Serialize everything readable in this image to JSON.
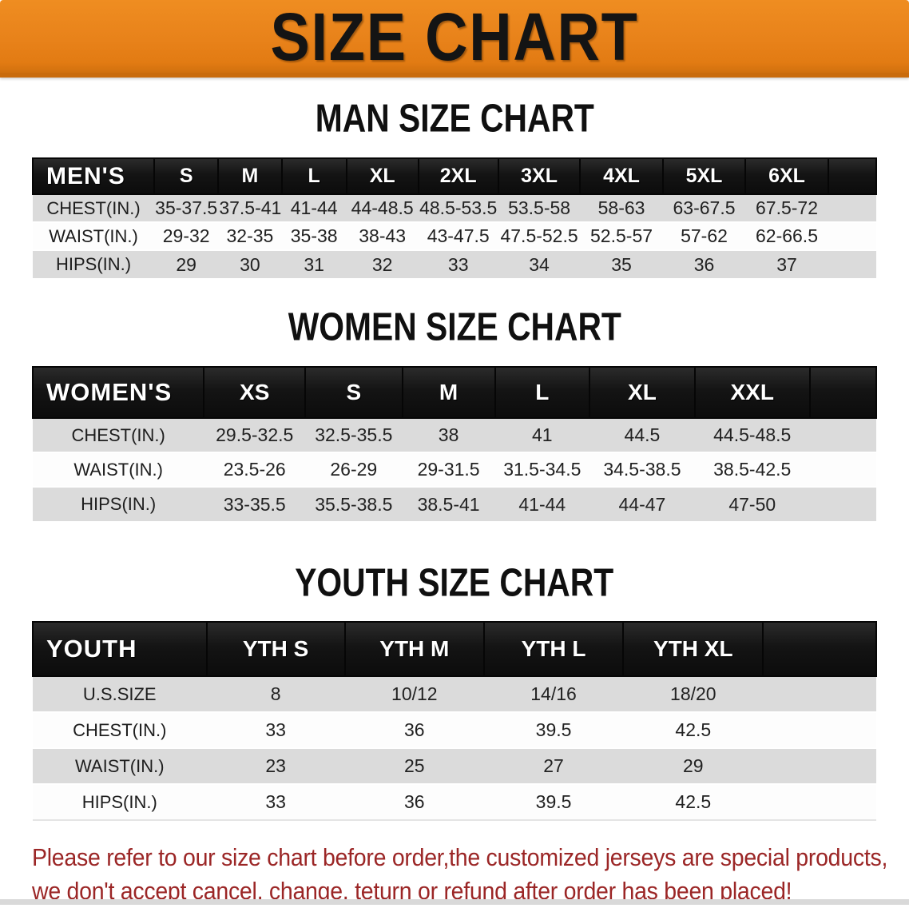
{
  "banner": {
    "title": "SIZE CHART",
    "bg_color": "#E8821A",
    "text_color": "#141414"
  },
  "sections": [
    {
      "id": "men",
      "heading": "MAN SIZE CHART",
      "header_label": "MEN'S",
      "columns": [
        "S",
        "M",
        "L",
        "XL",
        "2XL",
        "3XL",
        "4XL",
        "5XL",
        "6XL"
      ],
      "rows": [
        {
          "label": "CHEST(IN.)",
          "values": [
            "35-37.5",
            "37.5-41",
            "41-44",
            "44-48.5",
            "48.5-53.5",
            "53.5-58",
            "58-63",
            "63-67.5",
            "67.5-72"
          ]
        },
        {
          "label": "WAIST(IN.)",
          "values": [
            "29-32",
            "32-35",
            "35-38",
            "38-43",
            "43-47.5",
            "47.5-52.5",
            "52.5-57",
            "57-62",
            "62-66.5"
          ]
        },
        {
          "label": "HIPS(IN.)",
          "values": [
            "29",
            "30",
            "31",
            "32",
            "33",
            "34",
            "35",
            "36",
            "37"
          ]
        }
      ]
    },
    {
      "id": "women",
      "heading": "WOMEN SIZE CHART",
      "header_label": "WOMEN'S",
      "columns": [
        "XS",
        "S",
        "M",
        "L",
        "XL",
        "XXL"
      ],
      "rows": [
        {
          "label": "CHEST(IN.)",
          "values": [
            "29.5-32.5",
            "32.5-35.5",
            "38",
            "41",
            "44.5",
            "44.5-48.5"
          ]
        },
        {
          "label": "WAIST(IN.)",
          "values": [
            "23.5-26",
            "26-29",
            "29-31.5",
            "31.5-34.5",
            "34.5-38.5",
            "38.5-42.5"
          ]
        },
        {
          "label": "HIPS(IN.)",
          "values": [
            "33-35.5",
            "35.5-38.5",
            "38.5-41",
            "41-44",
            "44-47",
            "47-50"
          ]
        }
      ]
    },
    {
      "id": "youth",
      "heading": "YOUTH SIZE CHART",
      "header_label": "YOUTH",
      "columns": [
        "YTH S",
        "YTH M",
        "YTH L",
        "YTH XL"
      ],
      "rows": [
        {
          "label": "U.S.SIZE",
          "values": [
            "8",
            "10/12",
            "14/16",
            "18/20"
          ]
        },
        {
          "label": "CHEST(IN.)",
          "values": [
            "33",
            "36",
            "39.5",
            "42.5"
          ]
        },
        {
          "label": "WAIST(IN.)",
          "values": [
            "23",
            "25",
            "27",
            "29"
          ]
        },
        {
          "label": "HIPS(IN.)",
          "values": [
            "33",
            "36",
            "39.5",
            "42.5"
          ]
        }
      ]
    }
  ],
  "disclaimer": {
    "line1": "Please refer to our size chart before order,the customized jerseys are special products,",
    "line2": "we don't accept cancel, change, teturn or refund after order has been placed!",
    "color": "#9B2626"
  },
  "colors": {
    "banner_orange": "#E8821A",
    "table_header_black": "#161616",
    "row_gray": "#DBDBDB",
    "row_white": "#FDFDFD",
    "disclaimer_red": "#9B2626"
  }
}
